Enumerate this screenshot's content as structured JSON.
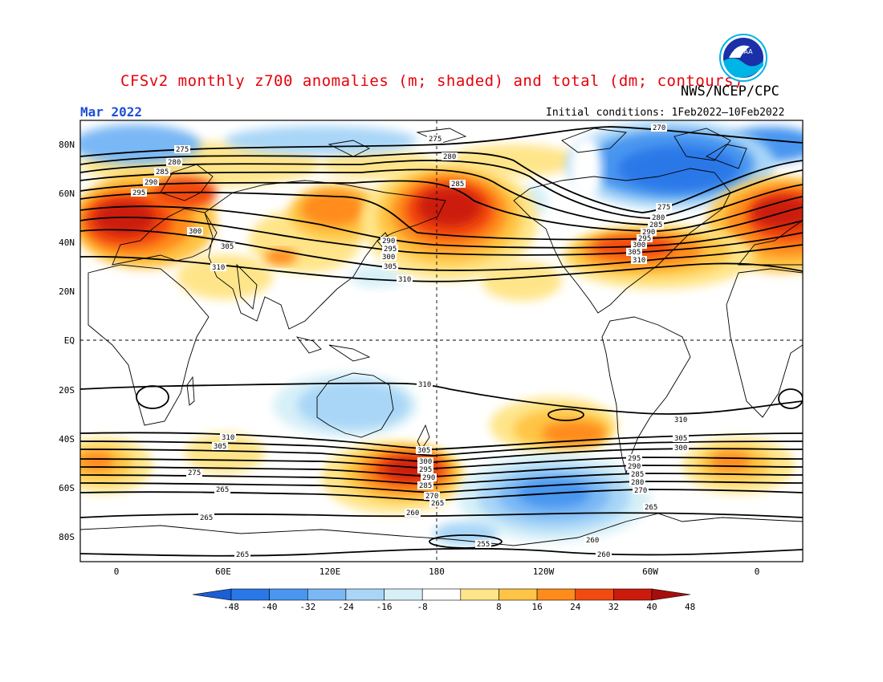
{
  "header": {
    "title": "CFSv2 monthly z700 anomalies (m; shaded) and total (dm; contours)",
    "agency": "NWS/NCEP/CPC",
    "month": "Mar 2022",
    "initial_conditions": "Initial conditions: 1Feb2022–10Feb2022",
    "logo_text": "NOAA"
  },
  "axes": {
    "lat_labels": [
      "80N",
      "60N",
      "40N",
      "20N",
      "EQ",
      "20S",
      "40S",
      "60S",
      "80S"
    ],
    "lon_labels": [
      "0",
      "60E",
      "120E",
      "180",
      "120W",
      "60W",
      "0"
    ]
  },
  "colorbar": {
    "labels": [
      "-48",
      "-40",
      "-32",
      "-24",
      "-16",
      "-8",
      "8",
      "16",
      "24",
      "32",
      "40",
      "48"
    ],
    "colors": [
      "#1a5fd6",
      "#2a78e8",
      "#4a96f0",
      "#7ab8f5",
      "#a9d6f7",
      "#d7f0f8",
      "#ffffff",
      "#ffe58a",
      "#ffc445",
      "#ff8c1a",
      "#f24a10",
      "#cc1a0d",
      "#a80d0d"
    ]
  },
  "contour_labels": [
    "275",
    "280",
    "285",
    "290",
    "295",
    "300",
    "305",
    "310",
    "270",
    "265",
    "260",
    "255"
  ]
}
